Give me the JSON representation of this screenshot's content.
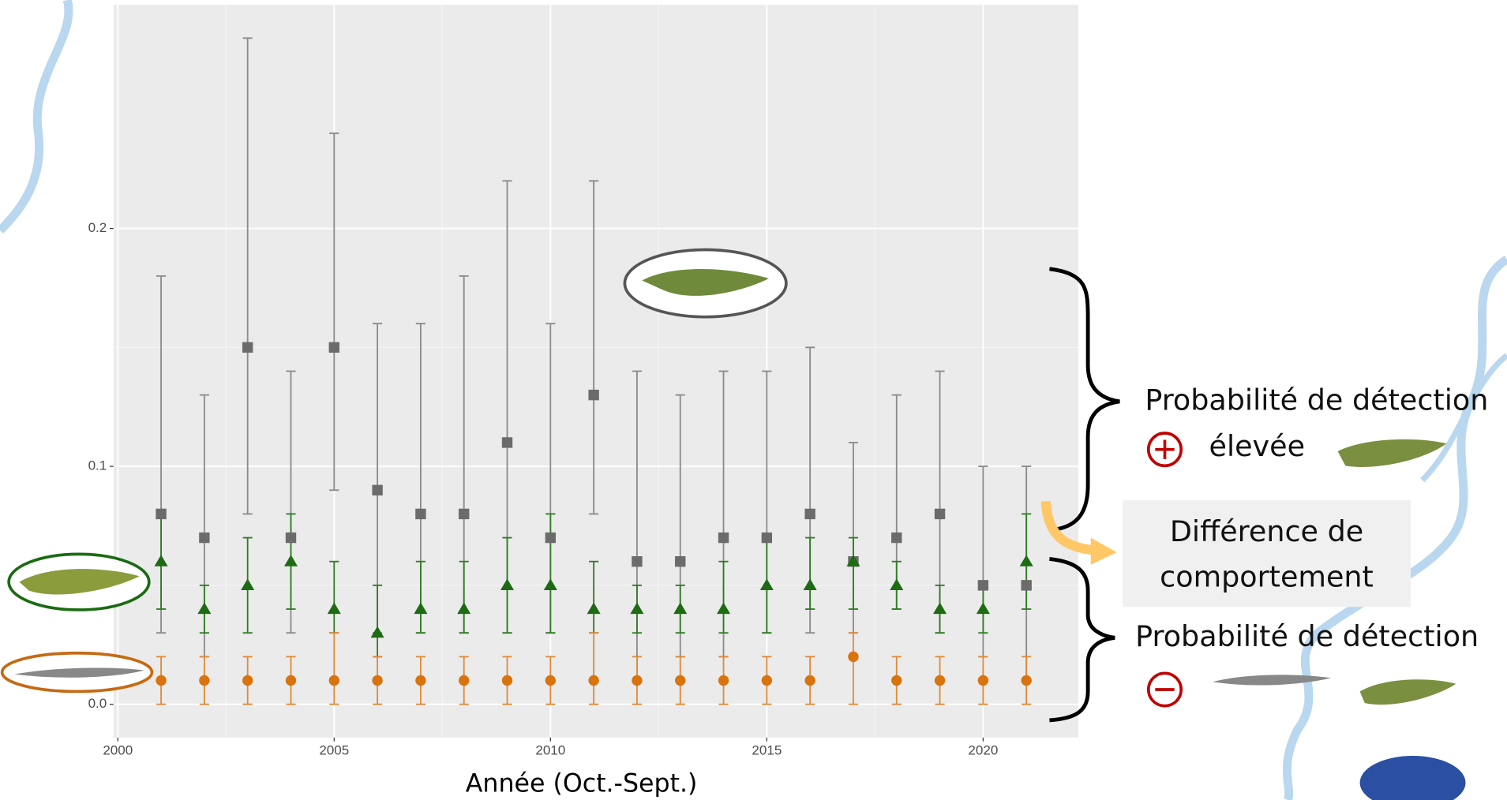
{
  "chart_data": {
    "type": "errorbar-scatter",
    "x_label": "Année (Oct.-Sept.)",
    "x": [
      2001,
      2002,
      2003,
      2004,
      2005,
      2006,
      2007,
      2008,
      2009,
      2010,
      2011,
      2012,
      2013,
      2014,
      2015,
      2016,
      2017,
      2018,
      2019,
      2020,
      2021
    ],
    "xlim": [
      1999.9,
      2022.2
    ],
    "xticks": [
      2000,
      2005,
      2010,
      2015,
      2020
    ],
    "ylim": [
      -0.014,
      0.294
    ],
    "yticks": [
      {
        "value": 0,
        "label": "0.0"
      },
      0.1,
      0.2
    ],
    "grid": true,
    "series": [
      {
        "color": "#6b6b6b",
        "bar_color": "#8a8a8a",
        "marker": "square",
        "values": [
          0.08,
          0.07,
          0.15,
          0.07,
          0.15,
          0.09,
          0.08,
          0.08,
          0.11,
          0.07,
          0.13,
          0.06,
          0.06,
          0.07,
          0.07,
          0.08,
          0.06,
          0.07,
          0.08,
          0.05,
          0.05
        ],
        "lower": [
          0.03,
          0.02,
          0.08,
          0.03,
          0.09,
          0.03,
          0.03,
          0.03,
          0.03,
          0.03,
          0.08,
          0.01,
          0.02,
          0.02,
          0.03,
          0.03,
          0.03,
          0.04,
          0.03,
          0.02,
          0.01
        ],
        "upper": [
          0.18,
          0.13,
          0.28,
          0.14,
          0.24,
          0.16,
          0.16,
          0.18,
          0.22,
          0.16,
          0.22,
          0.14,
          0.13,
          0.14,
          0.14,
          0.15,
          0.11,
          0.13,
          0.14,
          0.1,
          0.1
        ]
      },
      {
        "color": "#1d6b12",
        "bar_color": "#2e7d22",
        "marker": "triangle",
        "values": [
          0.06,
          0.04,
          0.05,
          0.06,
          0.04,
          0.03,
          0.04,
          0.04,
          0.05,
          0.05,
          0.04,
          0.04,
          0.04,
          0.04,
          0.05,
          0.05,
          0.06,
          0.05,
          0.04,
          0.04,
          0.06
        ],
        "lower": [
          0.04,
          0.03,
          0.03,
          0.04,
          0.03,
          0.02,
          0.03,
          0.03,
          0.03,
          0.03,
          0.03,
          0.03,
          0.03,
          0.03,
          0.03,
          0.04,
          0.04,
          0.04,
          0.03,
          0.03,
          0.04
        ],
        "upper": [
          0.08,
          0.05,
          0.07,
          0.08,
          0.06,
          0.05,
          0.06,
          0.06,
          0.07,
          0.08,
          0.06,
          0.05,
          0.05,
          0.06,
          0.07,
          0.07,
          0.07,
          0.06,
          0.05,
          0.05,
          0.08
        ]
      },
      {
        "color": "#d9730d",
        "bar_color": "#e08a36",
        "marker": "circle",
        "values": [
          0.01,
          0.01,
          0.01,
          0.01,
          0.01,
          0.01,
          0.01,
          0.01,
          0.01,
          0.01,
          0.01,
          0.01,
          0.01,
          0.01,
          0.01,
          0.01,
          0.02,
          0.01,
          0.01,
          0.01,
          0.01
        ],
        "lower": [
          0,
          0,
          0,
          0,
          0,
          0,
          0,
          0,
          0,
          0,
          0,
          0,
          0,
          0,
          0,
          0,
          0,
          0,
          0,
          0,
          0
        ],
        "upper": [
          0.02,
          0.02,
          0.02,
          0.02,
          0.03,
          0.02,
          0.02,
          0.02,
          0.02,
          0.02,
          0.03,
          0.02,
          0.02,
          0.02,
          0.02,
          0.02,
          0.03,
          0.02,
          0.02,
          0.02,
          0.02
        ]
      }
    ],
    "annotations": [
      "Probabilité de détection",
      "élevée",
      "Différence de",
      "comportement",
      "Probabilité de détection"
    ]
  }
}
